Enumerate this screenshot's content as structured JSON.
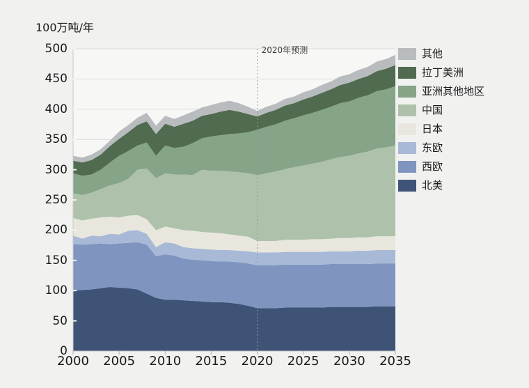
{
  "page": {
    "background": "#f1f1f0",
    "plot_background": "#f7f7f5",
    "grid_color": "#dcdcdc",
    "axis_color": "#c9c9c9",
    "tick_notch_color": "#f1f1f0",
    "text_color": "#1a1a1a",
    "forecast_line_color": "#9a9a9a"
  },
  "chart_data": {
    "type": "area",
    "stacked": true,
    "title": "100万吨/年",
    "xlabel": "",
    "ylabel": "100万吨/年",
    "grid": "horizontal",
    "legend_position": "right-outside-top",
    "xlim": [
      2000,
      2035
    ],
    "ylim": [
      0,
      500
    ],
    "xticks": [
      2000,
      2005,
      2010,
      2015,
      2020,
      2025,
      2030,
      2035
    ],
    "yticks": [
      0,
      50,
      100,
      150,
      200,
      250,
      300,
      350,
      400,
      450,
      500
    ],
    "annotation": {
      "x": 2020,
      "label": "2020年预测"
    },
    "x": [
      2000,
      2001,
      2002,
      2003,
      2004,
      2005,
      2006,
      2007,
      2008,
      2009,
      2010,
      2011,
      2012,
      2013,
      2014,
      2015,
      2016,
      2017,
      2018,
      2019,
      2020,
      2021,
      2022,
      2023,
      2024,
      2025,
      2026,
      2027,
      2028,
      2029,
      2030,
      2031,
      2032,
      2033,
      2034,
      2035
    ],
    "series_bottom_to_top": [
      {
        "id": "north-america",
        "name": "北美",
        "color": "#3f5376",
        "values": [
          100,
          101,
          102,
          104,
          106,
          105,
          104,
          102,
          95,
          88,
          85,
          85,
          84,
          83,
          82,
          81,
          81,
          80,
          78,
          75,
          71,
          71,
          71,
          72,
          72,
          72,
          72,
          72,
          73,
          73,
          73,
          73,
          73,
          74,
          74,
          74
        ]
      },
      {
        "id": "western-europe",
        "name": "西欧",
        "color": "#7f95bf",
        "values": [
          77,
          75,
          75,
          74,
          71,
          73,
          75,
          78,
          81,
          69,
          75,
          73,
          69,
          68,
          68,
          68,
          67,
          68,
          69,
          70,
          71,
          71,
          71,
          71,
          71,
          71,
          71,
          71,
          71,
          71,
          71,
          71,
          71,
          71,
          71,
          71
        ]
      },
      {
        "id": "eastern-europe",
        "name": "东欧",
        "color": "#a8b9d8",
        "values": [
          14,
          10,
          14,
          12,
          17,
          15,
          20,
          20,
          18,
          15,
          20,
          20,
          19,
          19,
          19,
          19,
          19,
          19,
          19,
          20,
          21,
          21,
          21,
          21,
          21,
          21,
          21,
          21,
          21,
          21,
          21,
          22,
          22,
          22,
          22,
          22
        ]
      },
      {
        "id": "japan",
        "name": "日本",
        "color": "#e9e7dd",
        "values": [
          29,
          30,
          28,
          31,
          28,
          28,
          25,
          25,
          24,
          28,
          26,
          25,
          28,
          29,
          28,
          28,
          28,
          26,
          25,
          24,
          19,
          19,
          19,
          20,
          20,
          20,
          21,
          21,
          21,
          22,
          22,
          22,
          22,
          23,
          23,
          23
        ]
      },
      {
        "id": "china",
        "name": "中国",
        "color": "#aec2ab",
        "values": [
          41,
          42,
          43,
          47,
          52,
          57,
          61,
          75,
          84,
          86,
          88,
          89,
          92,
          92,
          103,
          102,
          103,
          104,
          105,
          105,
          109,
          112,
          115,
          117,
          120,
          123,
          125,
          128,
          131,
          134,
          136,
          139,
          142,
          145,
          147,
          150
        ]
      },
      {
        "id": "other-asia",
        "name": "亚洲其他地区",
        "color": "#86a487",
        "values": [
          33,
          32,
          30,
          32,
          38,
          45,
          46,
          40,
          43,
          37,
          46,
          44,
          46,
          53,
          52,
          57,
          59,
          62,
          64,
          68,
          75,
          77,
          78,
          80,
          81,
          83,
          84,
          86,
          87,
          89,
          90,
          92,
          93,
          95,
          96,
          98
        ]
      },
      {
        "id": "latin-america",
        "name": "拉丁美洲",
        "color": "#506b4f",
        "values": [
          21,
          22,
          24,
          25,
          27,
          28,
          31,
          34,
          35,
          36,
          36,
          35,
          38,
          37,
          37,
          37,
          39,
          40,
          36,
          30,
          22,
          23,
          24,
          25,
          25,
          26,
          27,
          28,
          29,
          30,
          31,
          31,
          32,
          33,
          34,
          35
        ]
      },
      {
        "id": "other",
        "name": "其他",
        "color": "#b9bcbe",
        "values": [
          8,
          8,
          9,
          9,
          9,
          12,
          12,
          12,
          14,
          14,
          13,
          13,
          14,
          15,
          14,
          15,
          15,
          15,
          14,
          12,
          9,
          10,
          10,
          11,
          11,
          12,
          12,
          13,
          13,
          14,
          14,
          15,
          15,
          16,
          16,
          17
        ]
      }
    ]
  }
}
